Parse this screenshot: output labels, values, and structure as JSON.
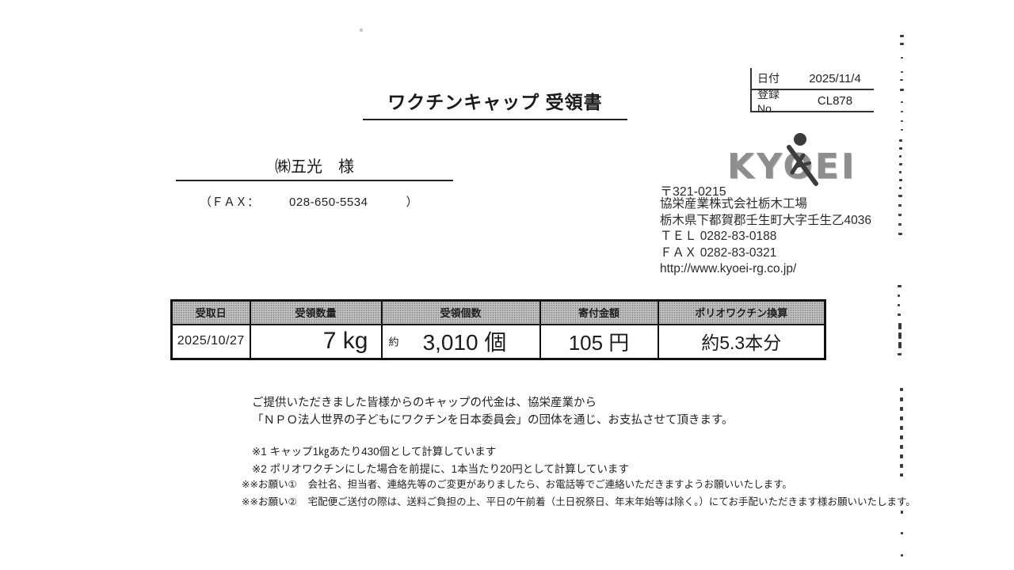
{
  "document": {
    "title": "ワクチンキャップ 受領書",
    "meta": {
      "date_label": "日付",
      "date_value": "2025/11/4",
      "reg_label": "登録No.",
      "reg_value": "CL878"
    },
    "recipient": {
      "name": "㈱五光　様",
      "fax_open": "（ＦＡＸ：",
      "fax_number": "028-650-5534",
      "fax_close": "）"
    },
    "company": {
      "postal": "〒321-0215",
      "logo_text": "KYOEI",
      "name": "協栄産業株式会社栃木工場",
      "address": "栃木県下都賀郡壬生町大字壬生乙4036",
      "tel": "ＴＥＬ 0282-83-0188",
      "fax": "ＦＡＸ 0282-83-0321",
      "url": "http://www.kyoei-rg.co.jp/"
    },
    "table": {
      "headers": [
        "受取日",
        "受領数量",
        "受領個数",
        "寄付金額",
        "ポリオワクチン換算"
      ],
      "row": {
        "receive_date": "2025/10/27",
        "weight": "7 kg",
        "approx_label": "約",
        "count": "3,010 個",
        "donation": "105 円",
        "polio": "約5.3本分"
      }
    },
    "notes": {
      "para_line1": "ご提供いただきました皆様からのキャップの代金は、協栄産業から",
      "para_line2": "「ＮＰＯ法人世界の子どもにワクチンを日本委員会」の団体を通じ、お支払させて頂きます。",
      "note1": "※1 キャップ1㎏あたり430個として計算しています",
      "note2": "※2 ポリオワクチンにした場合を前提に、1本当たり20円として計算しています",
      "request1_label": "※※お願い①",
      "request1_text": "会社名、担当者、連絡先等のご変更がありましたら、お電話等でご連絡いただきますようお願いいたします。",
      "request2_label": "※※お願い②",
      "request2_text": "宅配便ご送付の際は、送料ご負担の上、平日の午前着（土日祝祭日、年末年始等は除く。）にてお手配いただきます様お願いいたします。"
    }
  }
}
